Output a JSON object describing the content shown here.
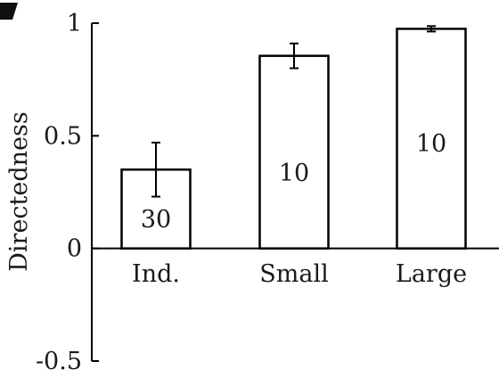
{
  "chart_data": {
    "type": "bar",
    "title": "",
    "xlabel": "",
    "ylabel": "Directedness",
    "ylim": [
      -0.5,
      1
    ],
    "yticks": [
      {
        "value": -0.5,
        "label": "-0.5"
      },
      {
        "value": 0,
        "label": "0"
      },
      {
        "value": 0.5,
        "label": "0.5"
      },
      {
        "value": 1,
        "label": "1"
      }
    ],
    "categories": [
      "Ind.",
      "Small",
      "Large"
    ],
    "values": [
      0.35,
      0.855,
      0.975
    ],
    "error": [
      0.12,
      0.055,
      0.012
    ],
    "bar_labels": [
      "30",
      "10",
      "10"
    ],
    "grid": false,
    "bar_fill": "#ffffff",
    "bar_stroke": "#000000"
  }
}
